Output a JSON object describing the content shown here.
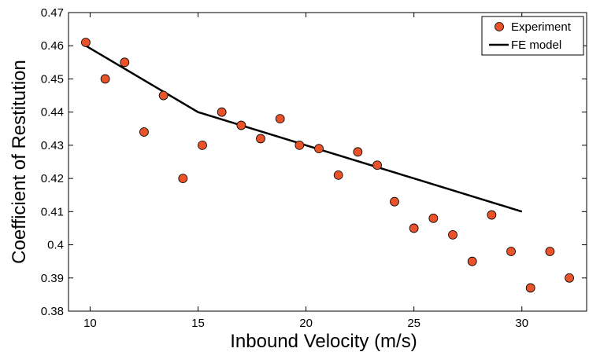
{
  "chart_data": {
    "type": "scatter",
    "title": "",
    "xlabel": "Inbound Velocity (m/s)",
    "ylabel": "Coefficient of Restitution",
    "xlim": [
      9,
      33
    ],
    "ylim": [
      0.38,
      0.47
    ],
    "x_ticks": [
      10,
      15,
      20,
      25,
      30
    ],
    "y_ticks": [
      0.38,
      0.39,
      0.4,
      0.41,
      0.42,
      0.43,
      0.44,
      0.45,
      0.46,
      0.47
    ],
    "x_tick_labels": [
      "10",
      "15",
      "20",
      "25",
      "30"
    ],
    "y_tick_labels": [
      "0.38",
      "0.39",
      "0.4",
      "0.41",
      "0.42",
      "0.43",
      "0.44",
      "0.45",
      "0.46",
      "0.47"
    ],
    "grid": false,
    "legend_position": "top-right",
    "series": [
      {
        "name": "Experiment",
        "kind": "scatter",
        "color": "#e8532a",
        "x": [
          9.8,
          10.7,
          11.6,
          12.5,
          13.4,
          14.3,
          15.2,
          16.1,
          17.0,
          17.9,
          18.8,
          19.7,
          20.6,
          21.5,
          22.4,
          23.3,
          24.1,
          25.0,
          25.9,
          26.8,
          27.7,
          28.6,
          29.5,
          30.4,
          31.3,
          32.2
        ],
        "y": [
          0.461,
          0.45,
          0.455,
          0.434,
          0.445,
          0.42,
          0.43,
          0.44,
          0.436,
          0.432,
          0.438,
          0.43,
          0.429,
          0.421,
          0.428,
          0.424,
          0.413,
          0.405,
          0.408,
          0.403,
          0.395,
          0.409,
          0.398,
          0.387,
          0.398,
          0.39
        ]
      },
      {
        "name": "FE model",
        "kind": "line",
        "color": "#000000",
        "x": [
          9.8,
          15.0,
          20.0,
          25.0,
          30.0
        ],
        "y": [
          0.46,
          0.44,
          0.43,
          0.42,
          0.41
        ]
      }
    ]
  }
}
